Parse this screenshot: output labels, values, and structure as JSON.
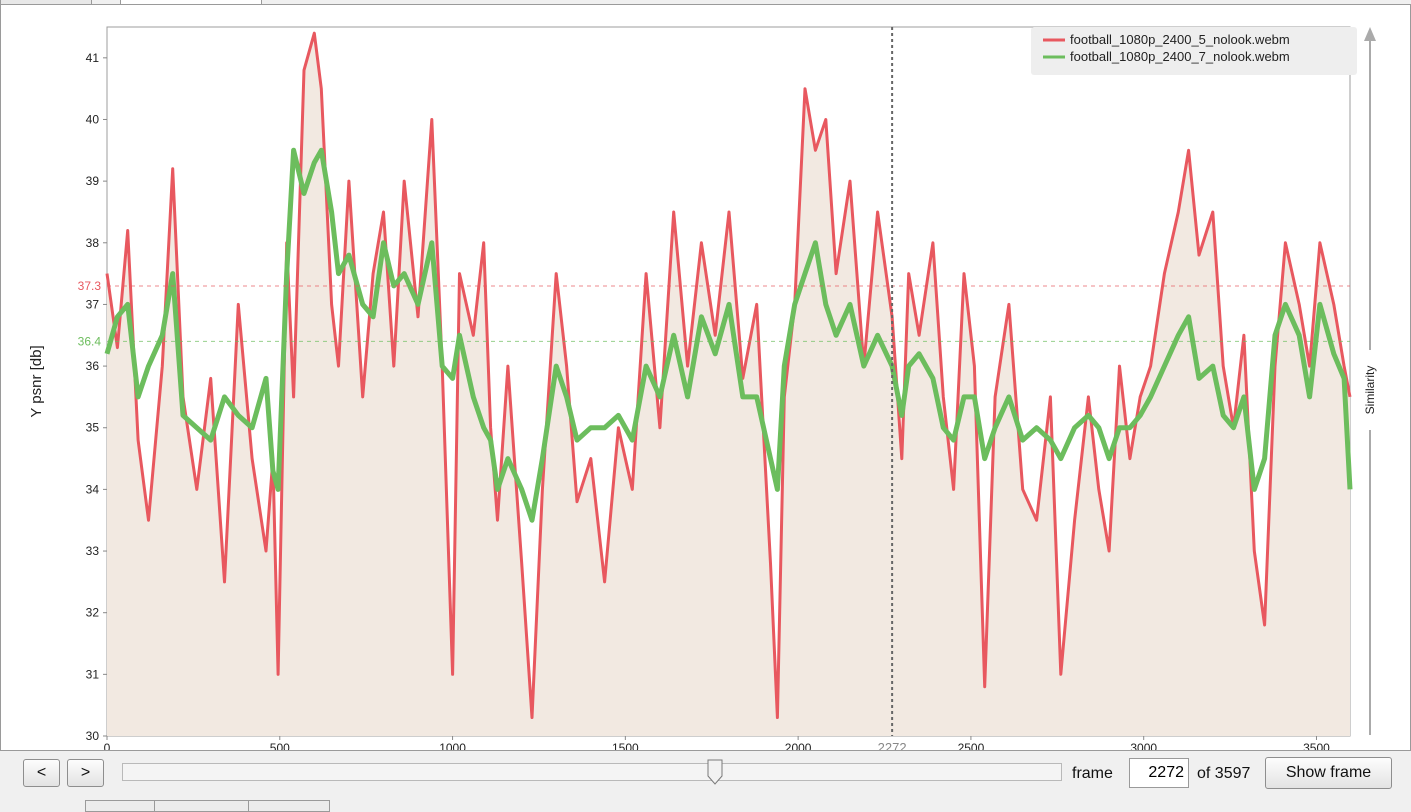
{
  "chart_data": {
    "type": "area",
    "xlabel": "",
    "ylabel": "Y psnr [db]",
    "right_label": "Similarity",
    "xlim": [
      0,
      3597
    ],
    "ylim": [
      30,
      41.5
    ],
    "x_ticks": [
      0,
      500,
      1000,
      1500,
      2000,
      2500,
      3000,
      3500
    ],
    "y_ticks": [
      30,
      31,
      32,
      33,
      34,
      35,
      36,
      37,
      38,
      39,
      40,
      41
    ],
    "cursor_frame": 2272,
    "grid": false,
    "legend_position": "top-right",
    "mean_markers": [
      {
        "series": 0,
        "value": 37.3,
        "label": "37.3"
      },
      {
        "series": 1,
        "value": 36.4,
        "label": "36.4"
      }
    ],
    "series": [
      {
        "name": "football_1080p_2400_5_nolook.webm",
        "color": "#e8585f",
        "points": [
          [
            0,
            37.5
          ],
          [
            30,
            36.3
          ],
          [
            60,
            38.2
          ],
          [
            90,
            34.8
          ],
          [
            120,
            33.5
          ],
          [
            160,
            36.0
          ],
          [
            190,
            39.2
          ],
          [
            220,
            35.5
          ],
          [
            260,
            34.0
          ],
          [
            300,
            35.8
          ],
          [
            340,
            32.5
          ],
          [
            380,
            37.0
          ],
          [
            420,
            34.5
          ],
          [
            460,
            33.0
          ],
          [
            480,
            34.5
          ],
          [
            495,
            31.0
          ],
          [
            520,
            38.0
          ],
          [
            540,
            35.5
          ],
          [
            570,
            40.8
          ],
          [
            600,
            41.4
          ],
          [
            620,
            40.5
          ],
          [
            650,
            37.0
          ],
          [
            670,
            36.0
          ],
          [
            700,
            39.0
          ],
          [
            740,
            35.5
          ],
          [
            770,
            37.5
          ],
          [
            800,
            38.5
          ],
          [
            830,
            36.0
          ],
          [
            860,
            39.0
          ],
          [
            900,
            36.8
          ],
          [
            940,
            40.0
          ],
          [
            970,
            36.0
          ],
          [
            1000,
            31.0
          ],
          [
            1020,
            37.5
          ],
          [
            1060,
            36.5
          ],
          [
            1090,
            38.0
          ],
          [
            1110,
            35.0
          ],
          [
            1130,
            33.5
          ],
          [
            1160,
            36.0
          ],
          [
            1200,
            32.8
          ],
          [
            1230,
            30.3
          ],
          [
            1260,
            34.0
          ],
          [
            1300,
            37.5
          ],
          [
            1330,
            36.0
          ],
          [
            1360,
            33.8
          ],
          [
            1400,
            34.5
          ],
          [
            1440,
            32.5
          ],
          [
            1480,
            35.0
          ],
          [
            1520,
            34.0
          ],
          [
            1560,
            37.5
          ],
          [
            1600,
            35.0
          ],
          [
            1640,
            38.5
          ],
          [
            1680,
            36.0
          ],
          [
            1720,
            38.0
          ],
          [
            1760,
            36.5
          ],
          [
            1800,
            38.5
          ],
          [
            1840,
            35.8
          ],
          [
            1880,
            37.0
          ],
          [
            1920,
            32.8
          ],
          [
            1940,
            30.3
          ],
          [
            1960,
            35.5
          ],
          [
            1990,
            37.0
          ],
          [
            2020,
            40.5
          ],
          [
            2050,
            39.5
          ],
          [
            2080,
            40.0
          ],
          [
            2110,
            37.5
          ],
          [
            2150,
            39.0
          ],
          [
            2190,
            36.0
          ],
          [
            2230,
            38.5
          ],
          [
            2272,
            36.8
          ],
          [
            2300,
            34.5
          ],
          [
            2320,
            37.5
          ],
          [
            2350,
            36.5
          ],
          [
            2390,
            38.0
          ],
          [
            2420,
            35.5
          ],
          [
            2450,
            34.0
          ],
          [
            2480,
            37.5
          ],
          [
            2510,
            36.0
          ],
          [
            2540,
            30.8
          ],
          [
            2570,
            35.5
          ],
          [
            2610,
            37.0
          ],
          [
            2650,
            34.0
          ],
          [
            2690,
            33.5
          ],
          [
            2730,
            35.5
          ],
          [
            2760,
            31.0
          ],
          [
            2800,
            33.5
          ],
          [
            2840,
            35.5
          ],
          [
            2870,
            34.0
          ],
          [
            2900,
            33.0
          ],
          [
            2930,
            36.0
          ],
          [
            2960,
            34.5
          ],
          [
            2990,
            35.5
          ],
          [
            3020,
            36.0
          ],
          [
            3060,
            37.5
          ],
          [
            3100,
            38.5
          ],
          [
            3130,
            39.5
          ],
          [
            3160,
            37.8
          ],
          [
            3200,
            38.5
          ],
          [
            3230,
            36.0
          ],
          [
            3260,
            35.0
          ],
          [
            3290,
            36.5
          ],
          [
            3320,
            33.0
          ],
          [
            3350,
            31.8
          ],
          [
            3380,
            36.0
          ],
          [
            3410,
            38.0
          ],
          [
            3450,
            37.0
          ],
          [
            3480,
            36.0
          ],
          [
            3510,
            38.0
          ],
          [
            3550,
            37.0
          ],
          [
            3580,
            36.0
          ],
          [
            3597,
            35.5
          ]
        ]
      },
      {
        "name": "football_1080p_2400_7_nolook.webm",
        "color": "#6cbd5d",
        "points": [
          [
            0,
            36.2
          ],
          [
            30,
            36.8
          ],
          [
            60,
            37.0
          ],
          [
            90,
            35.5
          ],
          [
            120,
            36.0
          ],
          [
            160,
            36.5
          ],
          [
            190,
            37.5
          ],
          [
            220,
            35.2
          ],
          [
            260,
            35.0
          ],
          [
            300,
            34.8
          ],
          [
            340,
            35.5
          ],
          [
            380,
            35.2
          ],
          [
            420,
            35.0
          ],
          [
            460,
            35.8
          ],
          [
            480,
            34.3
          ],
          [
            495,
            34.0
          ],
          [
            520,
            37.5
          ],
          [
            540,
            39.5
          ],
          [
            570,
            38.8
          ],
          [
            600,
            39.3
          ],
          [
            620,
            39.5
          ],
          [
            650,
            38.5
          ],
          [
            670,
            37.5
          ],
          [
            700,
            37.8
          ],
          [
            740,
            37.0
          ],
          [
            770,
            36.8
          ],
          [
            800,
            38.0
          ],
          [
            830,
            37.3
          ],
          [
            860,
            37.5
          ],
          [
            900,
            37.0
          ],
          [
            940,
            38.0
          ],
          [
            970,
            36.0
          ],
          [
            1000,
            35.8
          ],
          [
            1020,
            36.5
          ],
          [
            1060,
            35.5
          ],
          [
            1090,
            35.0
          ],
          [
            1110,
            34.8
          ],
          [
            1130,
            34.0
          ],
          [
            1160,
            34.5
          ],
          [
            1200,
            34.0
          ],
          [
            1230,
            33.5
          ],
          [
            1260,
            34.5
          ],
          [
            1300,
            36.0
          ],
          [
            1330,
            35.5
          ],
          [
            1360,
            34.8
          ],
          [
            1400,
            35.0
          ],
          [
            1440,
            35.0
          ],
          [
            1480,
            35.2
          ],
          [
            1520,
            34.8
          ],
          [
            1560,
            36.0
          ],
          [
            1600,
            35.5
          ],
          [
            1640,
            36.5
          ],
          [
            1680,
            35.5
          ],
          [
            1720,
            36.8
          ],
          [
            1760,
            36.2
          ],
          [
            1800,
            37.0
          ],
          [
            1840,
            35.5
          ],
          [
            1880,
            35.5
          ],
          [
            1920,
            34.5
          ],
          [
            1940,
            34.0
          ],
          [
            1960,
            36.0
          ],
          [
            1990,
            37.0
          ],
          [
            2020,
            37.5
          ],
          [
            2050,
            38.0
          ],
          [
            2080,
            37.0
          ],
          [
            2110,
            36.5
          ],
          [
            2150,
            37.0
          ],
          [
            2190,
            36.0
          ],
          [
            2230,
            36.5
          ],
          [
            2272,
            36.0
          ],
          [
            2300,
            35.2
          ],
          [
            2320,
            36.0
          ],
          [
            2350,
            36.2
          ],
          [
            2390,
            35.8
          ],
          [
            2420,
            35.0
          ],
          [
            2450,
            34.8
          ],
          [
            2480,
            35.5
          ],
          [
            2510,
            35.5
          ],
          [
            2540,
            34.5
          ],
          [
            2570,
            35.0
          ],
          [
            2610,
            35.5
          ],
          [
            2650,
            34.8
          ],
          [
            2690,
            35.0
          ],
          [
            2730,
            34.8
          ],
          [
            2760,
            34.5
          ],
          [
            2800,
            35.0
          ],
          [
            2840,
            35.2
          ],
          [
            2870,
            35.0
          ],
          [
            2900,
            34.5
          ],
          [
            2930,
            35.0
          ],
          [
            2960,
            35.0
          ],
          [
            2990,
            35.2
          ],
          [
            3020,
            35.5
          ],
          [
            3060,
            36.0
          ],
          [
            3100,
            36.5
          ],
          [
            3130,
            36.8
          ],
          [
            3160,
            35.8
          ],
          [
            3200,
            36.0
          ],
          [
            3230,
            35.2
          ],
          [
            3260,
            35.0
          ],
          [
            3290,
            35.5
          ],
          [
            3320,
            34.0
          ],
          [
            3350,
            34.5
          ],
          [
            3380,
            36.5
          ],
          [
            3410,
            37.0
          ],
          [
            3450,
            36.5
          ],
          [
            3480,
            35.5
          ],
          [
            3510,
            37.0
          ],
          [
            3550,
            36.2
          ],
          [
            3580,
            35.8
          ],
          [
            3597,
            34.0
          ]
        ]
      }
    ]
  },
  "controls": {
    "prev_label": "<",
    "next_label": ">",
    "frame_label": "frame",
    "frame_value": "2272",
    "of_label": "of 3597",
    "show_frame_label": "Show frame",
    "slider_fraction": 0.632
  }
}
